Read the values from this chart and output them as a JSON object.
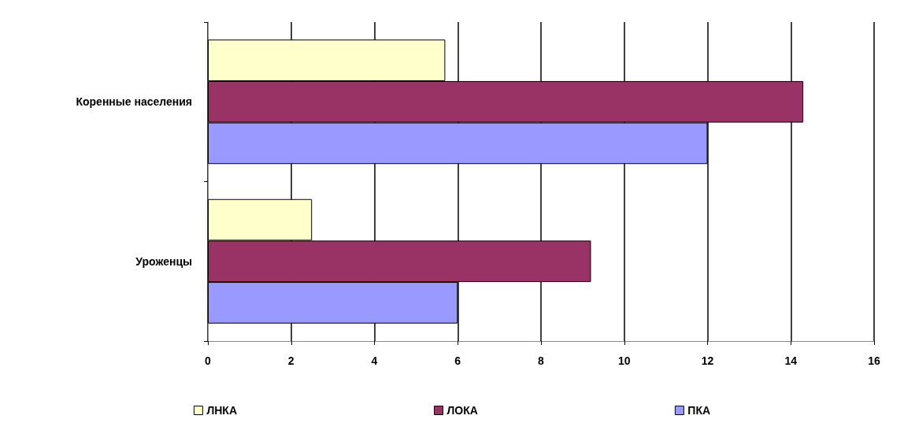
{
  "chart_data": {
    "type": "bar",
    "orientation": "horizontal",
    "categories": [
      "Коренные населения",
      "Уроженцы"
    ],
    "series": [
      {
        "name": "ЛНКА",
        "color": "#ffffcc",
        "values": [
          5.7,
          2.5
        ]
      },
      {
        "name": "ЛОКА",
        "color": "#993366",
        "values": [
          14.3,
          9.2
        ]
      },
      {
        "name": "ПКА",
        "color": "#9999ff",
        "values": [
          12,
          6
        ]
      }
    ],
    "xlim": [
      0,
      16
    ],
    "xticks": [
      0,
      2,
      4,
      6,
      8,
      10,
      12,
      14,
      16
    ],
    "grid": "x",
    "legend": "bottom"
  }
}
